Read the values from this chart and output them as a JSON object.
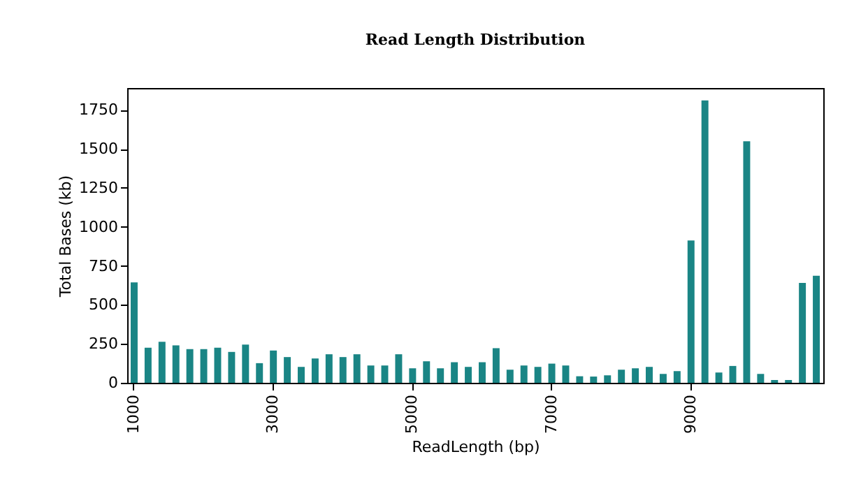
{
  "chart_data": {
    "type": "bar",
    "title": "Read Length Distribution",
    "xlabel": "ReadLength (bp)",
    "ylabel": "Total Bases (kb)",
    "categories": [
      "1000",
      null,
      null,
      null,
      null,
      null,
      null,
      null,
      null,
      null,
      "3000",
      null,
      null,
      null,
      null,
      null,
      null,
      null,
      null,
      null,
      "5000",
      null,
      null,
      null,
      null,
      null,
      null,
      null,
      null,
      null,
      "7000",
      null,
      null,
      null,
      null,
      null,
      null,
      null,
      null,
      null,
      "9000",
      null,
      null,
      null,
      null,
      null,
      null,
      null,
      null,
      null
    ],
    "values": [
      644,
      225,
      263,
      240,
      216,
      216,
      225,
      198,
      245,
      126,
      207,
      165,
      102,
      156,
      183,
      165,
      183,
      111,
      111,
      183,
      93,
      138,
      93,
      132,
      102,
      132,
      222,
      84,
      111,
      102,
      123,
      111,
      42,
      40,
      48,
      84,
      93,
      102,
      57,
      75,
      913,
      1811,
      66,
      108,
      1548,
      57,
      18,
      18,
      641,
      686
    ],
    "color": "#1a8585",
    "ylim": [
      0,
      1890
    ],
    "yticks": [
      0,
      250,
      500,
      750,
      1000,
      1250,
      1500,
      1750
    ],
    "grid": false
  }
}
